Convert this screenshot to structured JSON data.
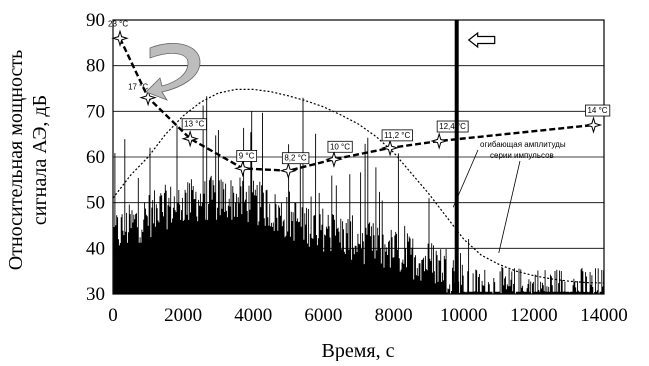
{
  "chart_data": {
    "type": "line",
    "xlabel": "Время, с",
    "ylabel_line1": "Относительная мощность",
    "ylabel_line2": "сигнала АЭ, дБ",
    "xlim": [
      0,
      14000
    ],
    "ylim": [
      30,
      90
    ],
    "x_ticks": [
      "0",
      "2000",
      "4000",
      "6000",
      "8000",
      "10000",
      "12000",
      "14000"
    ],
    "y_ticks": [
      "30",
      "40",
      "50",
      "60",
      "70",
      "80",
      "90"
    ],
    "grid": "horizontal",
    "temperature_series": {
      "points": [
        {
          "x": 200,
          "y": 86,
          "label": "23 °C",
          "boxed": false
        },
        {
          "x": 1000,
          "y": 73,
          "label": "17 °C",
          "boxed": false
        },
        {
          "x": 2200,
          "y": 64,
          "label": "13 °C",
          "boxed": true
        },
        {
          "x": 3700,
          "y": 57.5,
          "label": "9 °C",
          "boxed": true
        },
        {
          "x": 5000,
          "y": 57,
          "label": "8,2 °C",
          "boxed": true
        },
        {
          "x": 6300,
          "y": 59.5,
          "label": "10 °C",
          "boxed": true
        },
        {
          "x": 7900,
          "y": 62,
          "label": "11,2 °C",
          "boxed": true
        },
        {
          "x": 9300,
          "y": 63.5,
          "label": "12,4 °C",
          "boxed": true
        },
        {
          "x": 13700,
          "y": 67,
          "label": "14 °C",
          "boxed": true
        }
      ]
    },
    "envelope_series": {
      "x": [
        0,
        500,
        1000,
        1500,
        2000,
        2500,
        3000,
        3500,
        4000,
        4500,
        5000,
        5500,
        6000,
        6500,
        7000,
        7500,
        8000,
        8500,
        9000,
        9500,
        10000,
        10500,
        11000,
        11500,
        12000,
        12500,
        13000,
        13500,
        14000
      ],
      "y": [
        51,
        56,
        60,
        65,
        69,
        72,
        74,
        74.8,
        74.8,
        74.3,
        73.4,
        72.3,
        71,
        69.2,
        67.2,
        64.5,
        61,
        56.5,
        52,
        47,
        42,
        38.5,
        36.5,
        35,
        34,
        33.3,
        32.8,
        32.5,
        32.4
      ]
    },
    "envelope_annotation_line1": "огибающая амплитуды",
    "envelope_annotation_line2": "серии импульсов",
    "vertical_marker_x": 9800
  }
}
